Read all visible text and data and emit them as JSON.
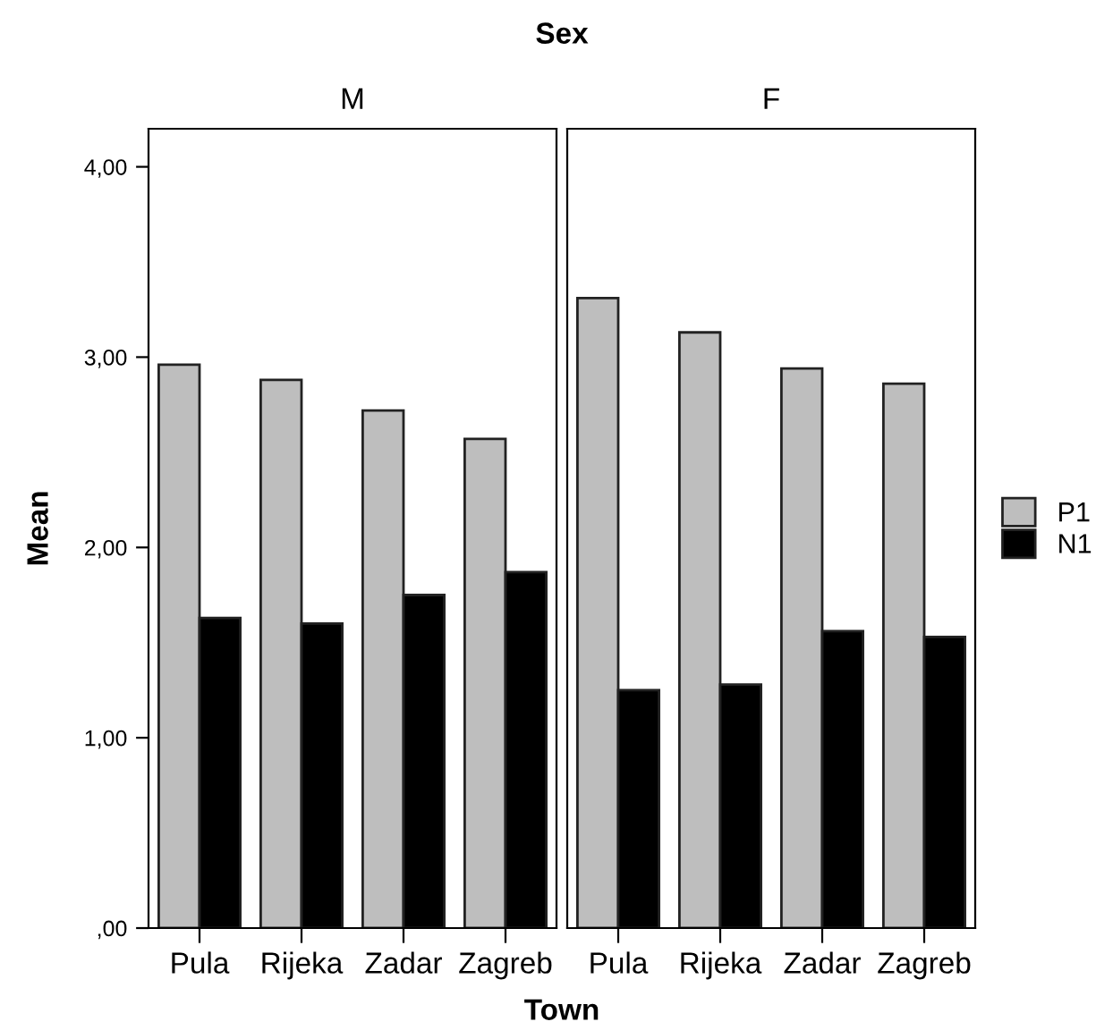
{
  "chart_data": [
    {
      "type": "bar",
      "title": "M",
      "annotations": [
        "Sex"
      ],
      "xlabel": "Town",
      "ylabel": "Mean",
      "categories": [
        "Pula",
        "Rijeka",
        "Zadar",
        "Zagreb"
      ],
      "series": [
        {
          "color": "#bebebe",
          "values": [
            2.96,
            2.88,
            2.72,
            2.57
          ]
        },
        {
          "color": "#000000",
          "values": [
            1.63,
            1.6,
            1.75,
            1.87
          ]
        }
      ],
      "ylim": [
        0,
        4.2
      ],
      "yticks": [
        {
          "value": 0,
          "label": ",00"
        },
        {
          "value": 1,
          "label": "1,00"
        },
        {
          "value": 2,
          "label": "2,00"
        },
        {
          "value": 3,
          "label": "3,00"
        },
        {
          "value": 4,
          "label": "4,00"
        }
      ],
      "grid": false,
      "legend": false
    },
    {
      "type": "bar",
      "title": "F",
      "categories": [
        "Pula",
        "Rijeka",
        "Zadar",
        "Zagreb"
      ],
      "series": [
        {
          "name": "P1",
          "color": "#bebebe",
          "values": [
            3.31,
            3.13,
            2.94,
            2.86
          ]
        },
        {
          "name": "N1",
          "color": "#000000",
          "values": [
            1.25,
            1.28,
            1.56,
            1.53
          ]
        }
      ],
      "ylim": [
        0,
        4.2
      ],
      "tick_labels": "x",
      "grid": false,
      "legend": "right"
    }
  ]
}
